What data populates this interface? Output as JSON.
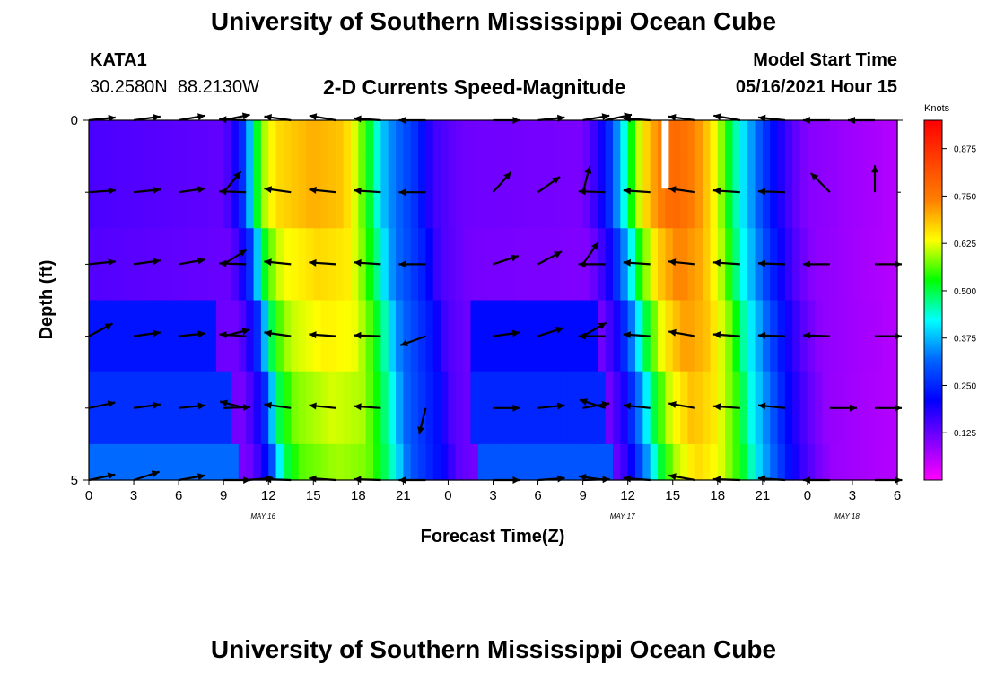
{
  "header": {
    "title": "University of Southern Mississippi Ocean Cube",
    "station_id": "KATA1",
    "station_coords": "30.2580N  88.2130W",
    "plot_title": "2-D Currents Speed-Magnitude",
    "model_label": "Model Start Time",
    "model_time": "05/16/2021 Hour 15"
  },
  "footer": {
    "title": "University of Southern Mississippi Ocean Cube"
  },
  "colors": {
    "background": "#ffffff",
    "arrow": "#000000",
    "marker": "#ffffff",
    "colormap": [
      "#ff00ff",
      "#7f00ff",
      "#0000ff",
      "#0064ff",
      "#00ffff",
      "#00ff00",
      "#ffff00",
      "#ff7f00",
      "#ff4000",
      "#ff0000"
    ]
  },
  "chart_data": {
    "type": "heatmap",
    "title": "2-D Currents Speed-Magnitude",
    "xlabel": "Forecast Time(Z)",
    "ylabel": "Depth (ft)",
    "x_unit": "hours since 2021-05-16 00Z",
    "xlim": [
      0,
      54
    ],
    "ylim": [
      5,
      0
    ],
    "x_ticks": [
      0,
      3,
      6,
      9,
      12,
      15,
      18,
      21,
      24,
      27,
      30,
      33,
      36,
      39,
      42,
      45,
      48,
      51,
      54
    ],
    "x_tick_labels": [
      "0",
      "3",
      "6",
      "9",
      "12",
      "15",
      "18",
      "21",
      "0",
      "3",
      "6",
      "9",
      "12",
      "15",
      "18",
      "21",
      "0",
      "3",
      "6"
    ],
    "y_tick_labels": [
      "0",
      "5"
    ],
    "y_minor_ticks": [
      1,
      2,
      3,
      4
    ],
    "date_labels": [
      {
        "x": 12,
        "label": "MAY 16"
      },
      {
        "x": 36,
        "label": "MAY 17"
      },
      {
        "x": 51,
        "label": "MAY 18"
      }
    ],
    "colorbar": {
      "label": "Knots",
      "range": [
        0,
        0.95
      ],
      "ticks": [
        0.875,
        0.75,
        0.625,
        0.5,
        0.375,
        0.25,
        0.125
      ],
      "tick_labels": [
        "0.875",
        "0.750",
        "0.625",
        "0.500",
        "0.375",
        "0.250",
        "0.125"
      ]
    },
    "depth_rows": [
      0.25,
      1.0,
      2.0,
      3.0,
      4.0,
      4.75
    ],
    "row_edges": [
      0,
      0.5,
      1.5,
      2.5,
      3.5,
      4.5,
      5
    ],
    "profile": [
      [
        0,
        0.15
      ],
      [
        9,
        0.13
      ],
      [
        9.5,
        0.17
      ],
      [
        10,
        0.22
      ],
      [
        10.5,
        0.3
      ],
      [
        11,
        0.45
      ],
      [
        11.5,
        0.58
      ],
      [
        12.5,
        0.66
      ],
      [
        15,
        0.7
      ],
      [
        17,
        0.68
      ],
      [
        18,
        0.6
      ],
      [
        19,
        0.48
      ],
      [
        19.5,
        0.4
      ],
      [
        20,
        0.35
      ],
      [
        21,
        0.3
      ],
      [
        22,
        0.25
      ],
      [
        23,
        0.16
      ],
      [
        25,
        0.12
      ],
      [
        33,
        0.11
      ],
      [
        33.5,
        0.14
      ],
      [
        34.5,
        0.22
      ],
      [
        35.5,
        0.38
      ],
      [
        36.5,
        0.58
      ],
      [
        37.5,
        0.7
      ],
      [
        39,
        0.78
      ],
      [
        40.5,
        0.74
      ],
      [
        42,
        0.62
      ],
      [
        43,
        0.48
      ],
      [
        44,
        0.38
      ],
      [
        45,
        0.28
      ],
      [
        46,
        0.2
      ],
      [
        47,
        0.14
      ],
      [
        48,
        0.1
      ],
      [
        51,
        0.08
      ],
      [
        54,
        0.06
      ]
    ],
    "row_factor": [
      1.0,
      1.0,
      0.95,
      0.92,
      0.88,
      0.85
    ],
    "row_shift": [
      0,
      0,
      0.4,
      0.9,
      1.3,
      1.6
    ],
    "base_overrides": [
      {
        "row": 3,
        "x0": 0,
        "x1": 8.5,
        "value": 0.23
      },
      {
        "row": 4,
        "x0": 0,
        "x1": 9.5,
        "value": 0.26
      },
      {
        "row": 5,
        "x0": 0,
        "x1": 10,
        "value": 0.32
      },
      {
        "row": 3,
        "x0": 25.5,
        "x1": 34,
        "value": 0.22
      },
      {
        "row": 4,
        "x0": 25.5,
        "x1": 34.5,
        "value": 0.25
      },
      {
        "row": 5,
        "x0": 26,
        "x1": 35,
        "value": 0.3
      },
      {
        "row": 0,
        "x0": 51.5,
        "x1": 54,
        "value": 0.02
      }
    ],
    "vectors": {
      "row_depths": [
        0,
        1,
        2,
        3,
        4,
        5
      ],
      "x": [
        0,
        3,
        6,
        9,
        10.5,
        13.5,
        16.5,
        19.5,
        22.5,
        27,
        30,
        33,
        34.5,
        37.5,
        40.5,
        43.5,
        46.5,
        49.5,
        52.5
      ],
      "angle_deg_east_zero_ccw": [
        [
          6,
          8,
          10,
          12,
          178,
          172,
          170,
          176,
          180,
          0,
          6,
          10,
          12,
          176,
          172,
          170,
          174,
          180,
          180
        ],
        [
          4,
          6,
          8,
          50,
          178,
          172,
          174,
          176,
          180,
          48,
          35,
          75,
          178,
          176,
          172,
          176,
          178,
          135,
          90
        ],
        [
          6,
          8,
          10,
          32,
          178,
          174,
          176,
          176,
          180,
          18,
          28,
          55,
          180,
          176,
          174,
          176,
          178,
          180,
          0
        ],
        [
          28,
          8,
          6,
          14,
          176,
          172,
          176,
          178,
          200,
          8,
          18,
          30,
          180,
          176,
          170,
          176,
          178,
          178,
          0
        ],
        [
          12,
          8,
          6,
          2,
          166,
          172,
          174,
          176,
          256,
          0,
          6,
          10,
          162,
          174,
          170,
          176,
          174,
          0,
          0
        ],
        [
          12,
          18,
          10,
          0,
          4,
          178,
          176,
          178,
          180,
          0,
          4,
          2,
          172,
          176,
          170,
          178,
          176,
          180,
          0
        ]
      ]
    },
    "marker": {
      "x": 38.5,
      "depth0": 0,
      "depth1": 0.95
    }
  }
}
